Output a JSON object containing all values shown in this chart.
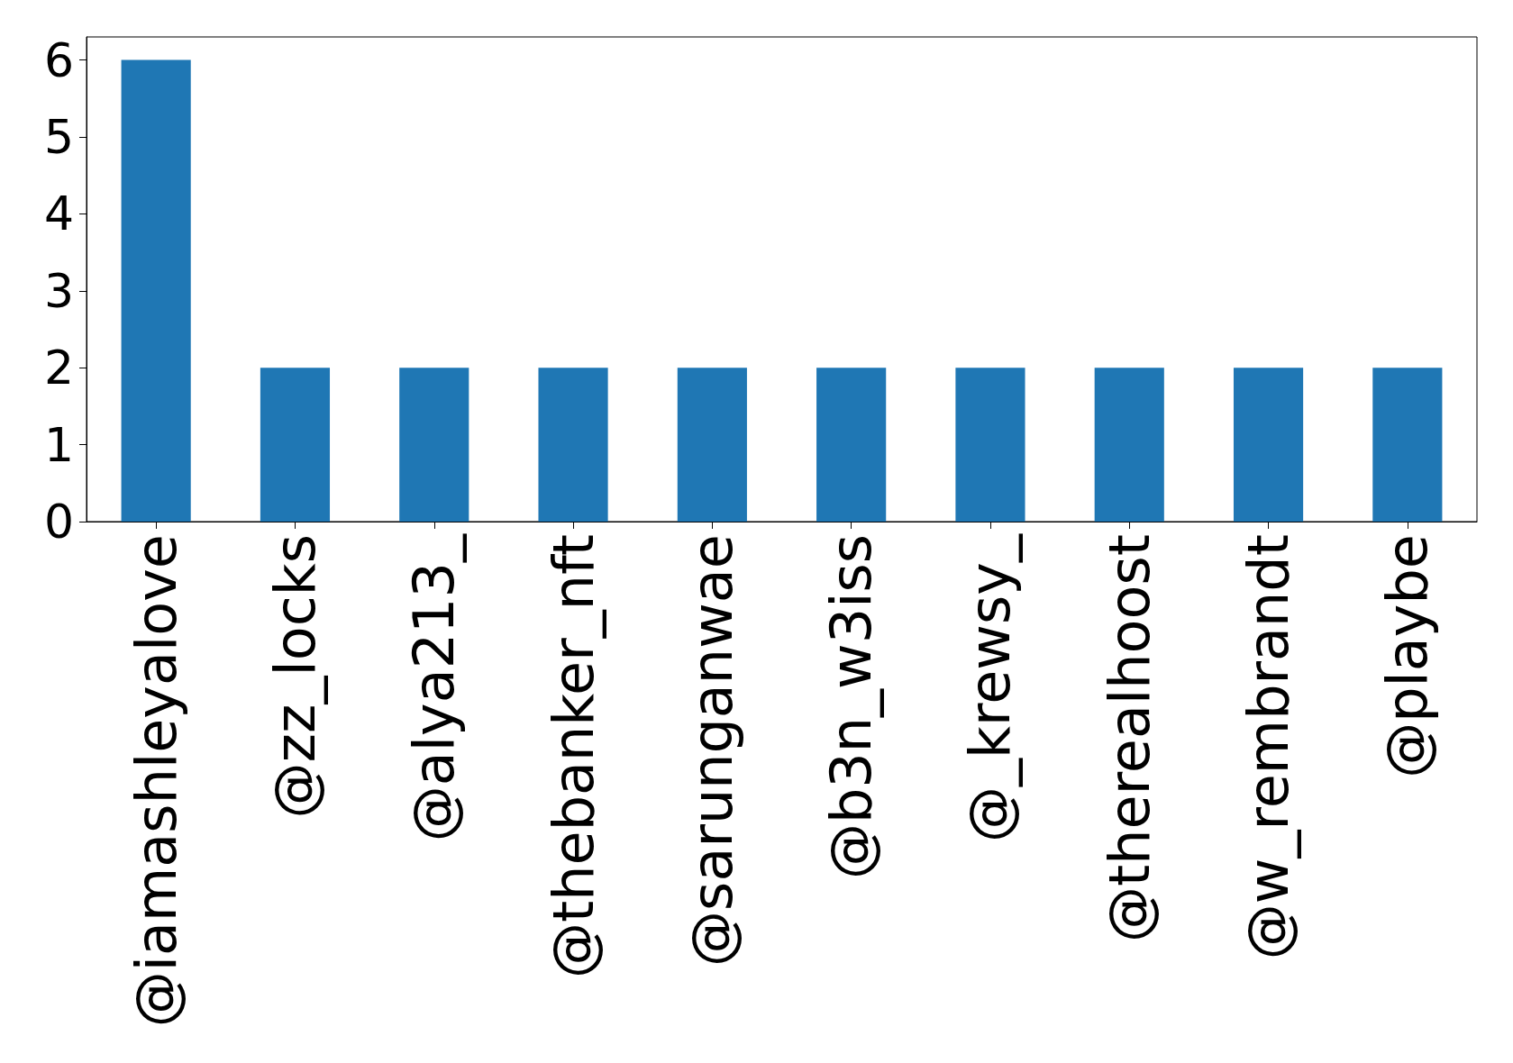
{
  "chart_data": {
    "type": "bar",
    "categories": [
      "@iamashleyalove",
      "@zz_locks",
      "@alya213_",
      "@thebanker_nft",
      "@sarunganwae",
      "@b3n_w3iss",
      "@_krewsy_",
      "@therealhoost",
      "@w_rembrandt",
      "@playbe"
    ],
    "values": [
      6,
      2,
      2,
      2,
      2,
      2,
      2,
      2,
      2,
      2
    ],
    "color": "#1f77b4",
    "ylim": [
      0,
      6.3
    ],
    "yticks": [
      0,
      1,
      2,
      3,
      4,
      5,
      6
    ],
    "grid": false
  }
}
